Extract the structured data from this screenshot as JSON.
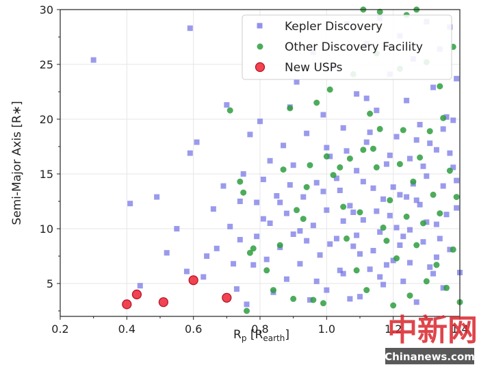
{
  "chart_data": {
    "type": "scatter",
    "xlabel": "Rp [Rearth]",
    "xlabel_main": "R",
    "xlabel_sub": "p",
    "xlabel_bracket_open": " [R",
    "xlabel_bracket_sub": "earth",
    "xlabel_bracket_close": "]",
    "ylabel": "Semi-Major Axis [R∗]",
    "xlim": [
      0.2,
      1.4
    ],
    "ylim": [
      2,
      30
    ],
    "xticks": [
      0.2,
      0.4,
      0.6,
      0.8,
      1.0,
      1.2,
      1.4
    ],
    "xtick_labels": [
      "0.2",
      "0.4",
      "0.6",
      "0.8",
      "1.0",
      "1.2",
      "1.4"
    ],
    "yticks": [
      5,
      10,
      15,
      20,
      25,
      30
    ],
    "ytick_labels": [
      "5",
      "10",
      "15",
      "20",
      "25",
      "30"
    ],
    "grid": true,
    "legend_position": "top-right",
    "colors": {
      "kepler": "#6f6fe6",
      "other": "#2e9e3e",
      "usp_fill": "#ee2233",
      "usp_edge": "#b01020"
    },
    "series": [
      {
        "name": "Kepler Discovery",
        "marker": "square",
        "points": [
          [
            0.3,
            25.4
          ],
          [
            0.59,
            28.3
          ],
          [
            0.59,
            16.9
          ],
          [
            0.61,
            17.9
          ],
          [
            0.49,
            12.9
          ],
          [
            0.41,
            12.3
          ],
          [
            0.55,
            10.0
          ],
          [
            0.52,
            7.8
          ],
          [
            0.44,
            4.8
          ],
          [
            0.58,
            6.1
          ],
          [
            0.63,
            5.6
          ],
          [
            0.66,
            11.8
          ],
          [
            0.67,
            8.2
          ],
          [
            0.64,
            7.5
          ],
          [
            0.69,
            13.9
          ],
          [
            0.7,
            21.3
          ],
          [
            0.71,
            10.2
          ],
          [
            0.73,
            4.5
          ],
          [
            0.72,
            6.8
          ],
          [
            0.74,
            9.0
          ],
          [
            0.74,
            12.5
          ],
          [
            0.75,
            15.0
          ],
          [
            0.76,
            3.1
          ],
          [
            0.77,
            18.6
          ],
          [
            0.78,
            6.7
          ],
          [
            0.79,
            9.3
          ],
          [
            0.79,
            12.4
          ],
          [
            0.8,
            19.8
          ],
          [
            0.81,
            14.5
          ],
          [
            0.82,
            7.2
          ],
          [
            0.83,
            16.2
          ],
          [
            0.83,
            10.5
          ],
          [
            0.84,
            4.2
          ],
          [
            0.85,
            13.0
          ],
          [
            0.86,
            8.3
          ],
          [
            0.87,
            17.6
          ],
          [
            0.88,
            11.4
          ],
          [
            0.88,
            5.4
          ],
          [
            0.89,
            21.1
          ],
          [
            0.9,
            15.8
          ],
          [
            0.9,
            9.5
          ],
          [
            0.91,
            23.4
          ],
          [
            0.92,
            6.8
          ],
          [
            0.93,
            12.9
          ],
          [
            0.94,
            18.7
          ],
          [
            0.95,
            3.5
          ],
          [
            0.96,
            10.3
          ],
          [
            0.96,
            26.1
          ],
          [
            0.97,
            14.2
          ],
          [
            0.98,
            7.6
          ],
          [
            0.99,
            20.4
          ],
          [
            1.0,
            11.7
          ],
          [
            1.0,
            4.4
          ],
          [
            1.01,
            16.6
          ],
          [
            1.02,
            24.8
          ],
          [
            1.03,
            9.1
          ],
          [
            1.04,
            13.5
          ],
          [
            1.05,
            5.9
          ],
          [
            1.05,
            19.2
          ],
          [
            1.06,
            28.7
          ],
          [
            1.07,
            12.1
          ],
          [
            1.08,
            8.4
          ],
          [
            1.09,
            22.3
          ],
          [
            1.09,
            15.3
          ],
          [
            1.1,
            3.8
          ],
          [
            1.11,
            10.8
          ],
          [
            1.12,
            17.9
          ],
          [
            1.12,
            26.9
          ],
          [
            1.13,
            6.3
          ],
          [
            1.14,
            13.7
          ],
          [
            1.15,
            20.8
          ],
          [
            1.16,
            9.7
          ],
          [
            1.16,
            29.2
          ],
          [
            1.17,
            4.9
          ],
          [
            1.18,
            15.9
          ],
          [
            1.19,
            24.1
          ],
          [
            1.19,
            11.2
          ],
          [
            1.2,
            7.1
          ],
          [
            1.21,
            18.4
          ],
          [
            1.22,
            27.6
          ],
          [
            1.22,
            13.1
          ],
          [
            1.23,
            5.2
          ],
          [
            1.24,
            21.7
          ],
          [
            1.25,
            9.9
          ],
          [
            1.25,
            16.4
          ],
          [
            1.26,
            25.5
          ],
          [
            1.27,
            3.3
          ],
          [
            1.27,
            12.6
          ],
          [
            1.28,
            19.5
          ],
          [
            1.29,
            8.8
          ],
          [
            1.3,
            28.9
          ],
          [
            1.3,
            14.8
          ],
          [
            1.31,
            6.5
          ],
          [
            1.32,
            22.9
          ],
          [
            1.33,
            10.4
          ],
          [
            1.33,
            17.2
          ],
          [
            1.34,
            26.4
          ],
          [
            1.35,
            4.6
          ],
          [
            1.35,
            13.9
          ],
          [
            1.36,
            20.2
          ],
          [
            1.37,
            8.1
          ],
          [
            1.37,
            28.4
          ],
          [
            1.38,
            15.6
          ],
          [
            1.39,
            11.9
          ],
          [
            1.39,
            23.7
          ],
          [
            1.4,
            6.0
          ],
          [
            0.92,
            9.8
          ],
          [
            0.97,
            5.2
          ],
          [
            1.03,
            14.6
          ],
          [
            1.08,
            11.5
          ],
          [
            1.13,
            18.8
          ],
          [
            1.18,
            6.7
          ],
          [
            1.23,
            9.3
          ],
          [
            1.28,
            12.2
          ],
          [
            1.33,
            7.4
          ],
          [
            1.38,
            19.9
          ],
          [
            1.01,
            8.6
          ],
          [
            1.06,
            17.1
          ],
          [
            1.11,
            14.3
          ],
          [
            1.16,
            5.6
          ],
          [
            1.21,
            10.1
          ],
          [
            1.26,
            14.1
          ],
          [
            1.31,
            17.8
          ],
          [
            1.36,
            11.3
          ],
          [
            0.86,
            12.4
          ],
          [
            0.94,
            8.9
          ],
          [
            0.99,
            13.4
          ],
          [
            1.04,
            6.2
          ],
          [
            1.09,
            9.4
          ],
          [
            1.14,
            8.0
          ],
          [
            1.19,
            16.7
          ],
          [
            1.24,
            12.9
          ],
          [
            1.29,
            15.7
          ],
          [
            1.34,
            9.1
          ],
          [
            1.39,
            14.4
          ],
          [
            0.81,
            10.9
          ],
          [
            0.89,
            14.0
          ],
          [
            1.07,
            3.6
          ],
          [
            1.12,
            21.9
          ],
          [
            1.17,
            12.7
          ],
          [
            1.22,
            8.5
          ],
          [
            1.27,
            18.1
          ],
          [
            1.32,
            5.9
          ],
          [
            1.37,
            16.9
          ],
          [
            1.15,
            11.6
          ],
          [
            1.2,
            13.8
          ],
          [
            1.25,
            6.9
          ],
          [
            1.3,
            10.6
          ],
          [
            1.35,
            19.1
          ],
          [
            1.1,
            7.7
          ],
          [
            1.05,
            10.7
          ],
          [
            1.0,
            17.4
          ]
        ]
      },
      {
        "name": "Other Discovery Facility",
        "marker": "circle",
        "points": [
          [
            0.71,
            20.8
          ],
          [
            0.74,
            14.3
          ],
          [
            0.75,
            13.3
          ],
          [
            0.76,
            2.5
          ],
          [
            0.77,
            7.8
          ],
          [
            0.78,
            8.2
          ],
          [
            0.82,
            6.2
          ],
          [
            0.84,
            4.4
          ],
          [
            0.86,
            8.5
          ],
          [
            0.87,
            15.4
          ],
          [
            0.89,
            21.0
          ],
          [
            0.9,
            3.6
          ],
          [
            0.91,
            11.7
          ],
          [
            0.93,
            10.9
          ],
          [
            0.94,
            13.8
          ],
          [
            0.95,
            15.8
          ],
          [
            0.96,
            3.5
          ],
          [
            0.97,
            21.5
          ],
          [
            0.99,
            3.2
          ],
          [
            1.0,
            16.6
          ],
          [
            1.01,
            22.7
          ],
          [
            1.02,
            14.9
          ],
          [
            1.04,
            15.6
          ],
          [
            1.05,
            12.0
          ],
          [
            1.06,
            9.1
          ],
          [
            1.07,
            16.4
          ],
          [
            1.09,
            6.2
          ],
          [
            1.1,
            11.5
          ],
          [
            1.11,
            17.2
          ],
          [
            1.12,
            4.4
          ],
          [
            1.13,
            20.5
          ],
          [
            1.14,
            17.3
          ],
          [
            1.15,
            15.6
          ],
          [
            1.16,
            19.1
          ],
          [
            1.17,
            10.1
          ],
          [
            1.18,
            8.9
          ],
          [
            1.19,
            12.6
          ],
          [
            1.2,
            3.0
          ],
          [
            1.21,
            7.3
          ],
          [
            1.22,
            15.9
          ],
          [
            1.23,
            19.0
          ],
          [
            1.24,
            11.1
          ],
          [
            1.25,
            3.9
          ],
          [
            1.26,
            14.3
          ],
          [
            1.27,
            8.5
          ],
          [
            1.28,
            16.5
          ],
          [
            1.29,
            10.5
          ],
          [
            1.3,
            5.2
          ],
          [
            1.31,
            18.9
          ],
          [
            1.32,
            13.1
          ],
          [
            1.33,
            6.7
          ],
          [
            1.34,
            11.4
          ],
          [
            1.35,
            20.1
          ],
          [
            1.36,
            4.6
          ],
          [
            1.37,
            15.3
          ],
          [
            1.38,
            8.1
          ],
          [
            1.39,
            12.9
          ],
          [
            1.4,
            3.3
          ],
          [
            1.11,
            30.0
          ],
          [
            1.16,
            29.8
          ],
          [
            1.08,
            24.1
          ],
          [
            1.24,
            29.5
          ],
          [
            1.27,
            30.0
          ],
          [
            1.3,
            25.2
          ],
          [
            1.34,
            23.0
          ],
          [
            1.38,
            26.6
          ],
          [
            1.15,
            26.0
          ],
          [
            1.22,
            24.6
          ]
        ]
      },
      {
        "name": "New USPs",
        "marker": "circle",
        "points": [
          [
            0.4,
            3.1
          ],
          [
            0.43,
            4.0
          ],
          [
            0.51,
            3.3
          ],
          [
            0.6,
            5.3
          ],
          [
            0.7,
            3.7
          ]
        ]
      }
    ]
  },
  "watermark": {
    "chinese": "中新网",
    "site": "Chinanews.com"
  }
}
